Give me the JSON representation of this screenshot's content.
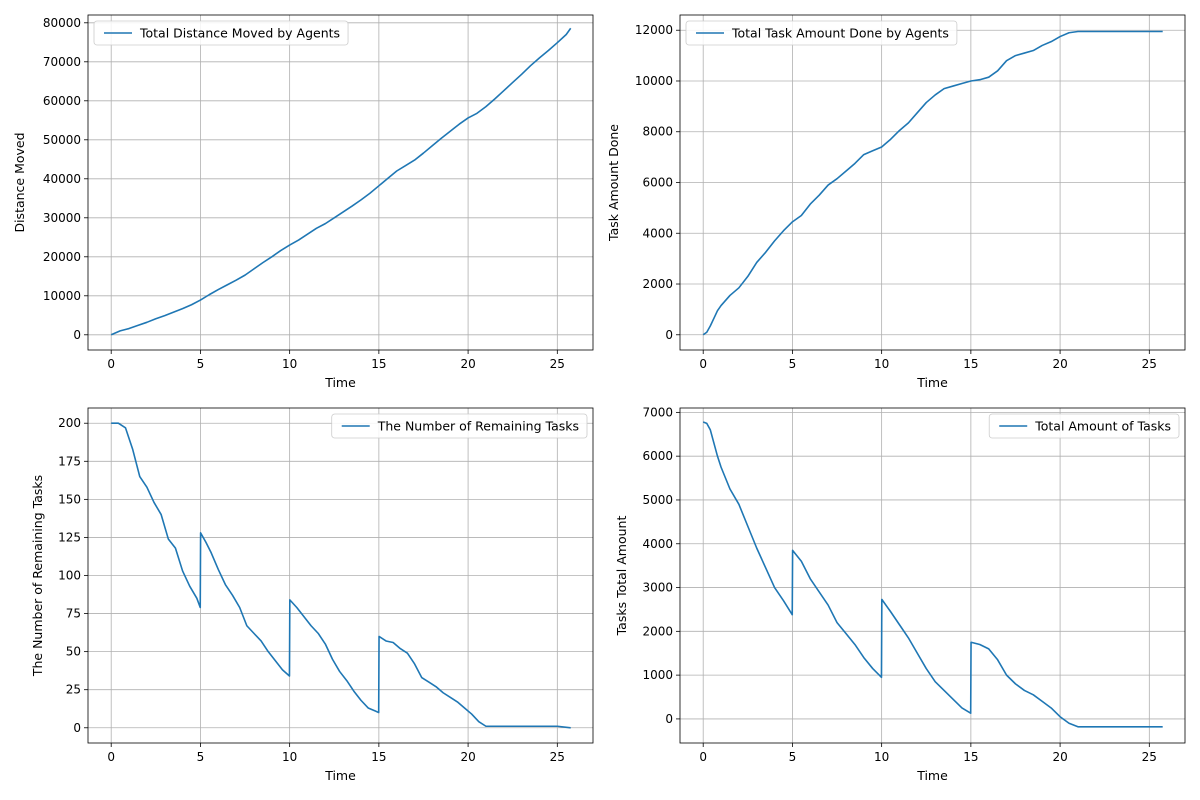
{
  "chart_data": [
    {
      "type": "line",
      "xlabel": "Time",
      "ylabel": "Distance Moved",
      "xlim": [
        -1.3,
        27
      ],
      "ylim": [
        -3900,
        82000
      ],
      "xticks": [
        0,
        5,
        10,
        15,
        20,
        25
      ],
      "yticks": [
        0,
        10000,
        20000,
        30000,
        40000,
        50000,
        60000,
        70000,
        80000
      ],
      "grid": true,
      "legend_position": "upper-left",
      "color": "#1f77b4",
      "series": [
        {
          "name": "Total Distance Moved by Agents",
          "x": [
            0,
            0.5,
            1,
            1.5,
            2,
            2.5,
            3,
            3.5,
            4,
            4.5,
            5,
            5.5,
            6,
            6.5,
            7,
            7.5,
            8,
            8.5,
            9,
            9.5,
            10,
            10.5,
            11,
            11.5,
            12,
            12.5,
            13,
            13.5,
            14,
            14.5,
            15,
            15.5,
            16,
            16.5,
            17,
            17.5,
            18,
            18.5,
            19,
            19.5,
            20,
            20.5,
            21,
            21.5,
            22,
            22.5,
            23,
            23.5,
            24,
            24.5,
            25,
            25.5,
            25.75
          ],
          "y": [
            0,
            1000,
            1600,
            2400,
            3200,
            4100,
            4900,
            5800,
            6700,
            7700,
            8900,
            10300,
            11600,
            12800,
            14000,
            15300,
            16900,
            18500,
            20000,
            21600,
            23000,
            24300,
            25800,
            27300,
            28500,
            30000,
            31500,
            33000,
            34600,
            36300,
            38200,
            40100,
            42000,
            43400,
            44800,
            46600,
            48500,
            50400,
            52200,
            54000,
            55600,
            56800,
            58500,
            60500,
            62600,
            64700,
            66800,
            69000,
            71000,
            72900,
            74900,
            77000,
            78600
          ]
        }
      ]
    },
    {
      "type": "line",
      "xlabel": "Time",
      "ylabel": "Task Amount Done",
      "xlim": [
        -1.3,
        27
      ],
      "ylim": [
        -600,
        12600
      ],
      "xticks": [
        0,
        5,
        10,
        15,
        20,
        25
      ],
      "yticks": [
        0,
        2000,
        4000,
        6000,
        8000,
        10000,
        12000
      ],
      "grid": true,
      "legend_position": "upper-left",
      "color": "#1f77b4",
      "series": [
        {
          "name": "Total Task Amount Done by Agents",
          "x": [
            0,
            0.2,
            0.4,
            0.6,
            0.8,
            1,
            1.5,
            2,
            2.5,
            3,
            3.5,
            4,
            4.5,
            5,
            5.5,
            6,
            6.5,
            7,
            7.5,
            8,
            8.5,
            9,
            9.5,
            10,
            10.5,
            11,
            11.5,
            12,
            12.5,
            13,
            13.5,
            14,
            14.5,
            15,
            15.5,
            16,
            16.5,
            17,
            17.5,
            18,
            18.5,
            19,
            19.5,
            20,
            20.5,
            21,
            22,
            23,
            24,
            25,
            25.75
          ],
          "y": [
            0,
            100,
            350,
            650,
            950,
            1150,
            1550,
            1850,
            2300,
            2850,
            3250,
            3700,
            4100,
            4450,
            4700,
            5150,
            5500,
            5900,
            6150,
            6450,
            6750,
            7100,
            7250,
            7400,
            7700,
            8050,
            8350,
            8750,
            9150,
            9450,
            9700,
            9800,
            9900,
            10000,
            10050,
            10150,
            10400,
            10800,
            11000,
            11100,
            11200,
            11400,
            11550,
            11750,
            11900,
            11950,
            11950,
            11950,
            11950,
            11950,
            11950
          ]
        }
      ]
    },
    {
      "type": "line",
      "xlabel": "Time",
      "ylabel": "The Number of Remaining Tasks",
      "xlim": [
        -1.3,
        27
      ],
      "ylim": [
        -10,
        210
      ],
      "xticks": [
        0,
        5,
        10,
        15,
        20,
        25
      ],
      "yticks": [
        0,
        25,
        50,
        75,
        100,
        125,
        150,
        175,
        200
      ],
      "grid": true,
      "legend_position": "upper-right",
      "color": "#1f77b4",
      "series": [
        {
          "name": "The Number of Remaining Tasks",
          "x": [
            0,
            0.4,
            0.8,
            1.2,
            1.6,
            2,
            2.4,
            2.8,
            3.2,
            3.6,
            4,
            4.4,
            4.8,
            4.99,
            5.01,
            5.3,
            5.6,
            6,
            6.4,
            6.8,
            7.2,
            7.6,
            8,
            8.4,
            8.8,
            9.2,
            9.6,
            9.99,
            10.01,
            10.4,
            10.8,
            11.2,
            11.6,
            12,
            12.4,
            12.8,
            13.2,
            13.6,
            14,
            14.4,
            14.8,
            14.99,
            15.01,
            15.4,
            15.8,
            16.2,
            16.6,
            17,
            17.4,
            17.8,
            18.2,
            18.6,
            19,
            19.4,
            19.8,
            20.2,
            20.6,
            21,
            22,
            23,
            24,
            25,
            25.75
          ],
          "y": [
            200,
            200,
            197,
            183,
            165,
            158,
            148,
            140,
            124,
            118,
            103,
            93,
            85,
            79,
            128,
            122,
            115,
            104,
            94,
            87,
            79,
            67,
            62,
            57,
            50,
            44,
            38,
            34,
            84,
            79,
            73,
            67,
            62,
            55,
            45,
            37,
            31,
            24,
            18,
            13,
            11,
            10,
            60,
            57,
            56,
            52,
            49,
            42,
            33,
            30,
            27,
            23,
            20,
            17,
            13,
            9,
            4,
            1,
            1,
            1,
            1,
            1,
            0
          ]
        }
      ]
    },
    {
      "type": "line",
      "xlabel": "Time",
      "ylabel": "Tasks Total Amount",
      "xlim": [
        -1.3,
        27
      ],
      "ylim": [
        -550,
        7100
      ],
      "xticks": [
        0,
        5,
        10,
        15,
        20,
        25
      ],
      "yticks": [
        0,
        1000,
        2000,
        3000,
        4000,
        5000,
        6000,
        7000
      ],
      "grid": true,
      "legend_position": "upper-right",
      "color": "#1f77b4",
      "series": [
        {
          "name": "Total Amount of Tasks",
          "x": [
            0,
            0.2,
            0.4,
            0.6,
            0.8,
            1,
            1.5,
            2,
            2.5,
            3,
            3.5,
            4,
            4.5,
            4.99,
            5.01,
            5.5,
            6,
            6.5,
            7,
            7.5,
            8,
            8.5,
            9,
            9.5,
            9.99,
            10.01,
            10.5,
            11,
            11.5,
            12,
            12.5,
            13,
            13.5,
            14,
            14.5,
            14.99,
            15.01,
            15.5,
            16,
            16.5,
            17,
            17.5,
            18,
            18.5,
            19,
            19.5,
            20,
            20.5,
            21,
            22,
            23,
            24,
            25,
            25.75
          ],
          "y": [
            6780,
            6750,
            6600,
            6300,
            6000,
            5750,
            5250,
            4900,
            4400,
            3900,
            3450,
            3000,
            2700,
            2380,
            3850,
            3600,
            3200,
            2900,
            2600,
            2200,
            1950,
            1700,
            1400,
            1150,
            950,
            2730,
            2450,
            2150,
            1850,
            1500,
            1150,
            850,
            650,
            450,
            250,
            130,
            1750,
            1700,
            1600,
            1350,
            1000,
            800,
            650,
            550,
            400,
            250,
            50,
            -100,
            -180,
            -180,
            -180,
            -180,
            -180,
            -180
          ]
        }
      ]
    }
  ]
}
